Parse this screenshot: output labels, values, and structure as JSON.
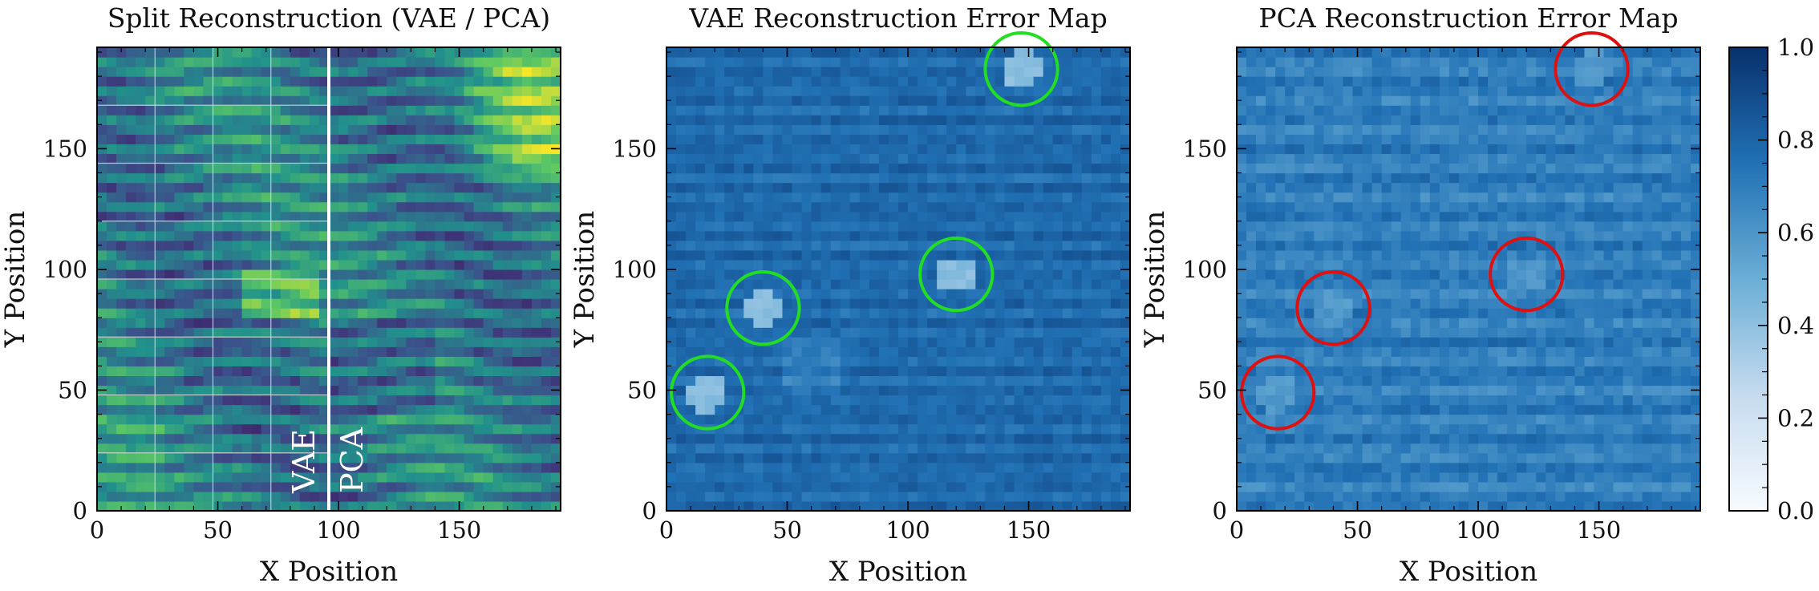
{
  "chart_data": [
    {
      "type": "heatmap",
      "title": "Split Reconstruction (VAE / PCA)",
      "xlabel": "X Position",
      "ylabel": "Y Position",
      "xlim": [
        0,
        192
      ],
      "ylim": [
        0,
        192
      ],
      "xticks": [
        "0",
        "50",
        "100",
        "150"
      ],
      "yticks": [
        "0",
        "50",
        "100",
        "150"
      ],
      "colormap": "viridis",
      "split_x": 96,
      "split_labels": [
        "VAE",
        "PCA"
      ],
      "grid_vertical": [
        24,
        48,
        72
      ],
      "grid_horizontal": [
        24,
        48,
        72,
        96,
        120,
        144,
        168
      ]
    },
    {
      "type": "heatmap",
      "title": "VAE Reconstruction Error Map",
      "xlabel": "X Position",
      "ylabel": "Y Position",
      "xlim": [
        0,
        192
      ],
      "ylim": [
        0,
        192
      ],
      "xticks": [
        "0",
        "50",
        "100",
        "150"
      ],
      "yticks": [
        "0",
        "50",
        "100",
        "150"
      ],
      "colormap": "Blues",
      "marker_color": "#22dd22",
      "markers": [
        {
          "x": 17,
          "y": 49,
          "r": 15
        },
        {
          "x": 40,
          "y": 84,
          "r": 15
        },
        {
          "x": 120,
          "y": 98,
          "r": 15
        },
        {
          "x": 147,
          "y": 183,
          "r": 15
        }
      ]
    },
    {
      "type": "heatmap",
      "title": "PCA Reconstruction Error Map",
      "xlabel": "X Position",
      "ylabel": "Y Position",
      "xlim": [
        0,
        192
      ],
      "ylim": [
        0,
        192
      ],
      "xticks": [
        "0",
        "50",
        "100",
        "150"
      ],
      "yticks": [
        "0",
        "50",
        "100",
        "150"
      ],
      "colormap": "Blues",
      "marker_color": "#dd1111",
      "markers": [
        {
          "x": 17,
          "y": 49,
          "r": 15
        },
        {
          "x": 40,
          "y": 84,
          "r": 15
        },
        {
          "x": 120,
          "y": 98,
          "r": 15
        },
        {
          "x": 147,
          "y": 183,
          "r": 15
        }
      ]
    }
  ],
  "colorbar": {
    "colormap": "Blues",
    "range": [
      0.0,
      1.0
    ],
    "ticks": [
      "0.0",
      "0.2",
      "0.4",
      "0.6",
      "0.8",
      "1.0"
    ]
  }
}
